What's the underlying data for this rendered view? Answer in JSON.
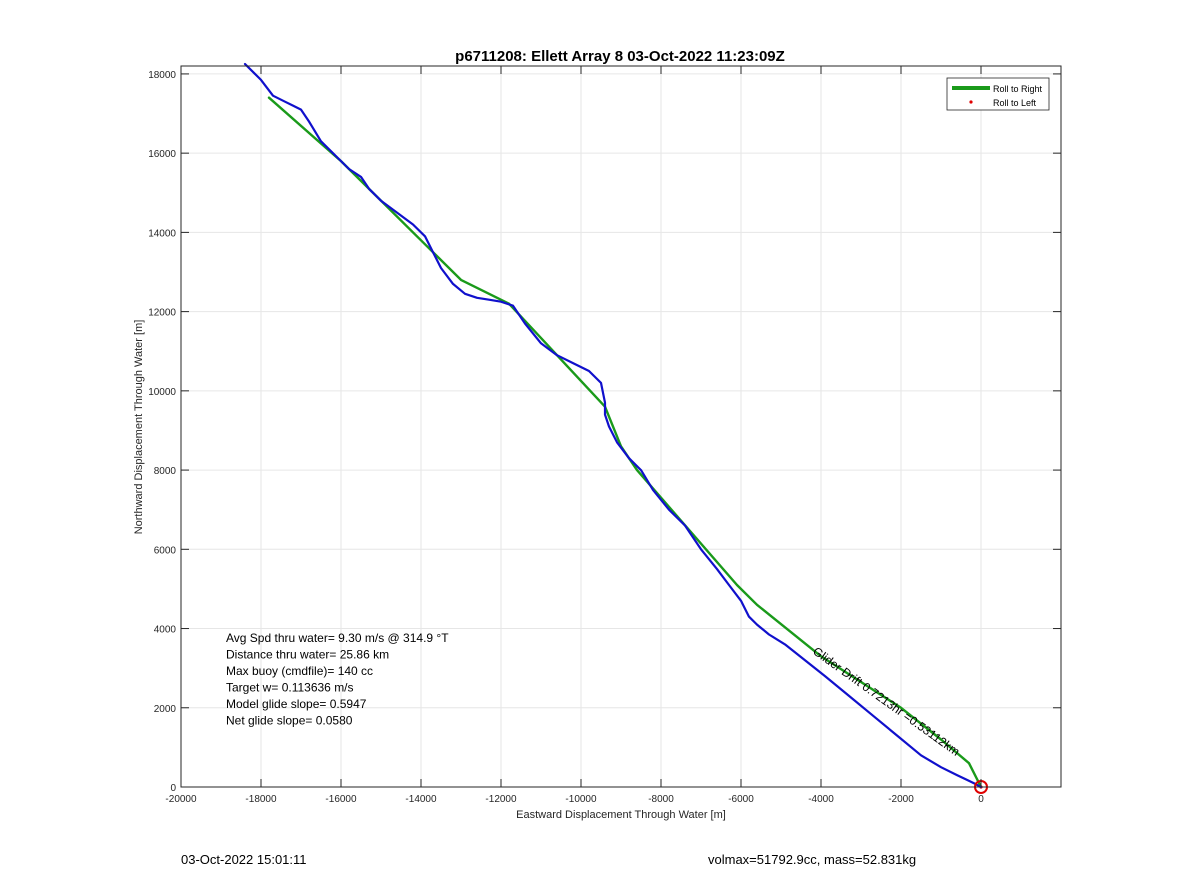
{
  "chart_data": {
    "type": "line",
    "title": "p6711208: Ellett Array 8 03-Oct-2022 11:23:09Z",
    "xlabel": "Eastward Displacement Through Water [m]",
    "ylabel": "Northward Displacement Through Water [m]",
    "xlim": [
      -20000,
      2000
    ],
    "ylim": [
      0,
      18200
    ],
    "xticks": [
      -20000,
      -18000,
      -16000,
      -14000,
      -12000,
      -10000,
      -8000,
      -6000,
      -4000,
      -2000,
      0
    ],
    "xtick_labels": [
      "-20000",
      "-18000",
      "-16000",
      "-14000",
      "-12000",
      "-10000",
      "-8000",
      "-6000",
      "-4000",
      "-2000",
      "0"
    ],
    "yticks": [
      0,
      2000,
      4000,
      6000,
      8000,
      10000,
      12000,
      14000,
      16000,
      18000
    ],
    "ytick_labels": [
      "0",
      "2000",
      "4000",
      "6000",
      "8000",
      "10000",
      "12000",
      "14000",
      "16000",
      "18000"
    ],
    "grid": true,
    "legend_position": "top-right",
    "series": [
      {
        "name": "Roll to Right",
        "color": "#1a9a1a",
        "style": "line",
        "x": [
          -17800,
          -16000,
          -14000,
          -13000,
          -11800,
          -9400,
          -9000,
          -8600,
          -6100,
          -5600,
          -4000,
          -2000,
          -1000,
          -300,
          0
        ],
        "y": [
          17400,
          15800,
          13800,
          12800,
          12200,
          9600,
          8600,
          8000,
          5100,
          4600,
          3300,
          2000,
          1200,
          600,
          0
        ]
      },
      {
        "name": "Roll to Left",
        "color": "#e00000",
        "style": "point",
        "x": [
          0
        ],
        "y": [
          0
        ]
      },
      {
        "name": "",
        "color": "#1010cc",
        "style": "line",
        "x": [
          -18400,
          -18000,
          -17700,
          -17400,
          -17200,
          -17000,
          -16800,
          -16500,
          -16100,
          -15800,
          -15500,
          -15300,
          -15000,
          -14600,
          -14200,
          -13900,
          -13700,
          -13500,
          -13200,
          -12900,
          -12600,
          -12300,
          -12000,
          -11700,
          -11400,
          -11000,
          -10600,
          -10200,
          -9800,
          -9500,
          -9400,
          -9400,
          -9300,
          -9100,
          -8800,
          -8500,
          -8200,
          -7800,
          -7400,
          -7000,
          -6600,
          -6300,
          -6000,
          -5800,
          -5600,
          -5300,
          -4900,
          -4400,
          -3900,
          -3300,
          -2700,
          -2100,
          -1500,
          -1000,
          -600,
          -350,
          -150,
          0
        ],
        "y": [
          18250,
          17850,
          17450,
          17300,
          17200,
          17100,
          16800,
          16300,
          15900,
          15600,
          15400,
          15100,
          14800,
          14500,
          14200,
          13900,
          13500,
          13100,
          12700,
          12450,
          12350,
          12300,
          12250,
          12150,
          11700,
          11200,
          10900,
          10700,
          10500,
          10200,
          9700,
          9400,
          9100,
          8700,
          8300,
          8000,
          7500,
          7000,
          6600,
          6000,
          5500,
          5100,
          4700,
          4300,
          4100,
          3850,
          3600,
          3200,
          2800,
          2300,
          1800,
          1300,
          800,
          500,
          300,
          180,
          80,
          0
        ]
      }
    ],
    "annotations": [
      "Avg Spd thru water=  9.30 m/s @ 314.9 °T",
      "Distance thru water= 25.86 km",
      "Max buoy (cmdfile)= 140 cc",
      "Target w= 0.113636 m/s",
      "Model glide slope= 0.5947",
      "Net glide slope= 0.0580"
    ],
    "curved_label": "Glider Drift 0.7213hr =0.53112km"
  },
  "footer": {
    "timestamp": "03-Oct-2022 15:01:11",
    "info": "volmax=51792.9cc, mass=52.831kg"
  }
}
